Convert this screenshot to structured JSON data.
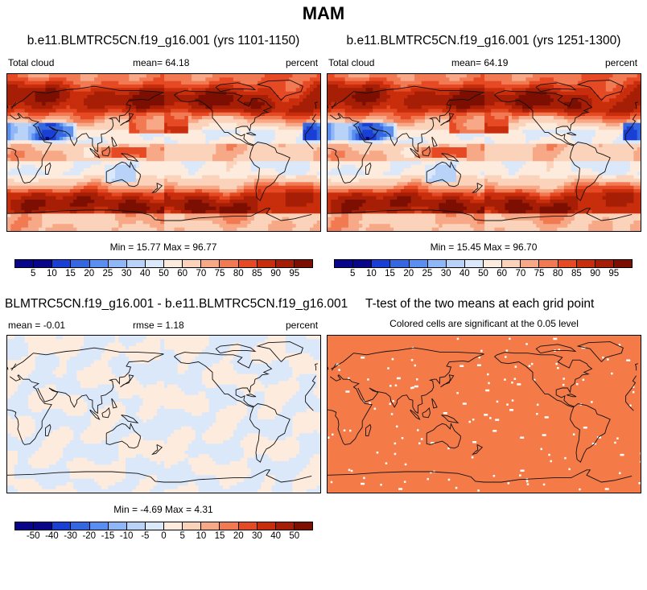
{
  "main_title": "MAM",
  "panels": [
    {
      "id": "p1",
      "title": "b.e11.BLMTRC5CN.f19_g16.001 (yrs 1101-1150)",
      "left_label": "Total cloud",
      "center_label": "mean=  64.18",
      "right_label": "percent",
      "minmax": "Min = 15.77 Max = 96.77",
      "colorbar_labels": [
        "5",
        "10",
        "15",
        "20",
        "25",
        "30",
        "40",
        "50",
        "60",
        "70",
        "75",
        "80",
        "85",
        "90",
        "95"
      ]
    },
    {
      "id": "p2",
      "title": "b.e11.BLMTRC5CN.f19_g16.001 (yrs 1251-1300)",
      "left_label": "Total cloud",
      "center_label": "mean=  64.19",
      "right_label": "percent",
      "minmax": "Min = 15.45 Max = 96.70",
      "colorbar_labels": [
        "5",
        "10",
        "15",
        "20",
        "25",
        "30",
        "40",
        "50",
        "60",
        "70",
        "75",
        "80",
        "85",
        "90",
        "95"
      ]
    },
    {
      "id": "p3",
      "title": "BLMTRC5CN.f19_g16.001 - b.e11.BLMTRC5CN.f19_g16.001",
      "left_label": "mean =  -0.01",
      "center_label": "rmse =   1.18",
      "right_label": "percent",
      "minmax": "Min = -4.69 Max =  4.31",
      "colorbar_labels": [
        "-50",
        "-40",
        "-30",
        "-20",
        "-15",
        "-10",
        "-5",
        "0",
        "5",
        "10",
        "15",
        "20",
        "30",
        "40",
        "50"
      ]
    },
    {
      "id": "p4",
      "title": "T-test of the two means at each grid point",
      "subtitle": "Colored cells are significant at the 0.05 level"
    }
  ],
  "colors": {
    "palette": [
      "#08058a",
      "#1a3fd4",
      "#3567e0",
      "#5a8ef0",
      "#8fb6f7",
      "#b8d2f8",
      "#dbe8fa",
      "#fdecde",
      "#fbd3bb",
      "#f7a886",
      "#f27a52",
      "#e54a24",
      "#c82d0c",
      "#a61e05",
      "#7c0f02"
    ],
    "ttest": "#f47a48"
  }
}
